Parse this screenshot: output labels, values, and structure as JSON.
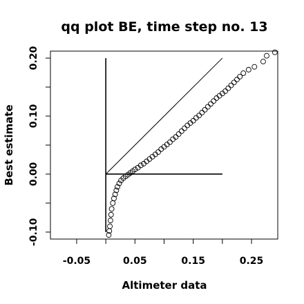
{
  "chart_data": {
    "type": "scatter",
    "title": "qq plot BE, time step no. 13",
    "xlabel": "Altimeter data",
    "ylabel": "Best estimate",
    "xlim": [
      -0.095,
      0.295
    ],
    "ylim": [
      -0.112,
      0.212
    ],
    "x_ticks": [
      -0.05,
      0.0,
      0.05,
      0.1,
      0.15,
      0.2,
      0.25
    ],
    "x_tick_labels": [
      "-0.05",
      "",
      "0.05",
      "",
      "0.15",
      "",
      "0.25"
    ],
    "y_ticks": [
      -0.1,
      -0.05,
      0.0,
      0.05,
      0.1,
      0.15,
      0.2
    ],
    "y_tick_labels": [
      "-0.10",
      "",
      "0.00",
      "",
      "0.10",
      "",
      "0.20"
    ],
    "marker": "open-circle",
    "grid": false,
    "colors": {
      "points": "#000000",
      "lines": "#000000",
      "background": "#ffffff"
    },
    "reference_lines": [
      {
        "kind": "diagonal",
        "from": [
          0.0,
          0.0
        ],
        "to": [
          0.2,
          0.2
        ]
      },
      {
        "kind": "horizontal",
        "from": [
          0.0,
          0.0
        ],
        "to": [
          0.2,
          0.0
        ]
      },
      {
        "kind": "vertical",
        "from": [
          0.0,
          -0.1
        ],
        "to": [
          0.0,
          0.2
        ]
      }
    ],
    "series": [
      {
        "x": [
          0.005,
          0.006,
          0.007,
          0.008,
          0.009,
          0.01,
          0.012,
          0.014,
          0.016,
          0.018,
          0.02,
          0.023,
          0.026,
          0.03,
          0.034,
          0.038,
          0.042,
          0.046,
          0.05,
          0.055,
          0.06,
          0.065,
          0.07,
          0.075,
          0.08,
          0.085,
          0.09,
          0.095,
          0.1,
          0.105,
          0.11,
          0.115,
          0.12,
          0.125,
          0.13,
          0.135,
          0.14,
          0.145,
          0.15,
          0.155,
          0.16,
          0.165,
          0.17,
          0.175,
          0.18,
          0.185,
          0.19,
          0.195,
          0.2,
          0.205,
          0.21,
          0.215,
          0.22,
          0.225,
          0.23,
          0.236,
          0.245,
          0.255,
          0.27,
          0.276,
          0.29
        ],
        "y": [
          -0.105,
          -0.098,
          -0.09,
          -0.08,
          -0.07,
          -0.06,
          -0.05,
          -0.042,
          -0.035,
          -0.028,
          -0.022,
          -0.016,
          -0.011,
          -0.007,
          -0.004,
          -0.001,
          0.002,
          0.005,
          0.008,
          0.011,
          0.015,
          0.018,
          0.022,
          0.026,
          0.03,
          0.034,
          0.038,
          0.043,
          0.047,
          0.051,
          0.055,
          0.06,
          0.064,
          0.069,
          0.074,
          0.079,
          0.084,
          0.088,
          0.092,
          0.097,
          0.101,
          0.106,
          0.111,
          0.116,
          0.121,
          0.126,
          0.131,
          0.135,
          0.139,
          0.143,
          0.148,
          0.153,
          0.158,
          0.163,
          0.168,
          0.174,
          0.18,
          0.185,
          0.194,
          0.204,
          0.21
        ]
      }
    ]
  }
}
